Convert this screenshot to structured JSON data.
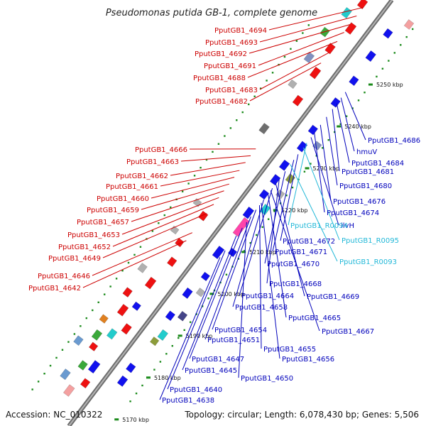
{
  "title": "Pseudomonas putida GB-1, complete genome",
  "accession": "Accession: NC_010322",
  "topology": "Topology: circular; Length: 6,078,430 bp; Genes: 5,506",
  "colors": {
    "left_label": "#cc0000",
    "right_label": "#0000bb",
    "rna_label": "#22b8d8",
    "backbone": "#808080",
    "tick": "#1a8a1a"
  },
  "axis_ticks": [
    "5170 kbp",
    "5180 kbp",
    "5190 kbp",
    "5200 kbp",
    "5210 kbp",
    "5220 kbp",
    "5230 kbp",
    "5240 kbp",
    "5250 kbp"
  ],
  "left_labels": [
    "PputGB1_4694",
    "PputGB1_4693",
    "PputGB1_4692",
    "PputGB1_4691",
    "PputGB1_4688",
    "PputGB1_4683",
    "PputGB1_4682",
    "PputGB1_4666",
    "PputGB1_4663",
    "PputGB1_4662",
    "PputGB1_4661",
    "PputGB1_4660",
    "PputGB1_4659",
    "PputGB1_4657",
    "PputGB1_4653",
    "PputGB1_4652",
    "PputGB1_4649",
    "PputGB1_4646",
    "PputGB1_4642"
  ],
  "right_labels": [
    "PputGB1_4686",
    "hmuV",
    "PputGB1_4684",
    "PputGB1_4681",
    "PputGB1_4680",
    "PputGB1_4676",
    "PputGB1_4674",
    "ilvH",
    "PputGB1_R0094",
    "PputGB1_R0095",
    "PputGB1_4672",
    "PputGB1_4671",
    "PputGB1_R0093",
    "PputGB1_4670",
    "PputGB1_4668",
    "PputGB1_4664",
    "PputGB1_4669",
    "PputGB1_4658",
    "PputGB1_4665",
    "PputGB1_4667",
    "PputGB1_4654",
    "PputGB1_4651",
    "PputGB1_4655",
    "PputGB1_4656",
    "PputGB1_4647",
    "PputGB1_4645",
    "PputGB1_4650",
    "PputGB1_4640",
    "PputGB1_4638"
  ],
  "right_label_kinds": [
    "gene",
    "gene",
    "gene",
    "gene",
    "gene",
    "gene",
    "gene",
    "gene",
    "rna",
    "rna",
    "gene",
    "gene",
    "rna",
    "gene",
    "gene",
    "gene",
    "gene",
    "gene",
    "gene",
    "gene",
    "gene",
    "gene",
    "gene",
    "gene",
    "gene",
    "gene",
    "gene",
    "gene",
    "gene"
  ]
}
